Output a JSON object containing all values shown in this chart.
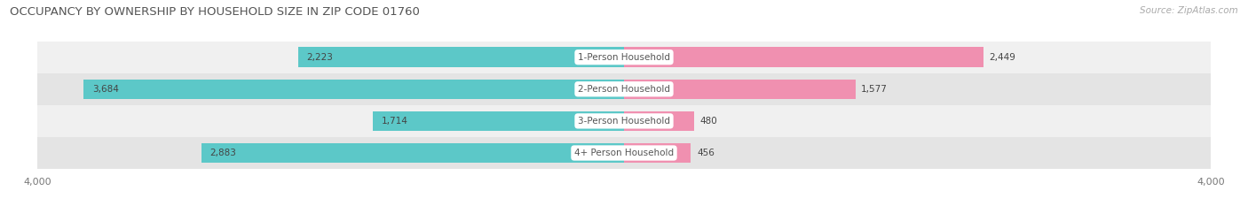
{
  "title": "OCCUPANCY BY OWNERSHIP BY HOUSEHOLD SIZE IN ZIP CODE 01760",
  "source": "Source: ZipAtlas.com",
  "categories": [
    "1-Person Household",
    "2-Person Household",
    "3-Person Household",
    "4+ Person Household"
  ],
  "owner_values": [
    2223,
    3684,
    1714,
    2883
  ],
  "renter_values": [
    2449,
    1577,
    480,
    456
  ],
  "owner_color": "#5CC8C8",
  "renter_color": "#F090B0",
  "row_bg_colors": [
    "#F0F0F0",
    "#E4E4E4"
  ],
  "x_max": 4000,
  "title_fontsize": 9.5,
  "source_fontsize": 7.5,
  "label_fontsize": 7.5,
  "category_fontsize": 7.5,
  "axis_label_fontsize": 8,
  "bar_height": 0.62,
  "figsize": [
    14.06,
    2.33
  ],
  "dpi": 100
}
